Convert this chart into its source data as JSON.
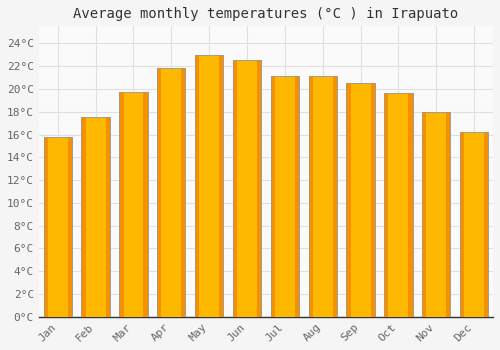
{
  "title": "Average monthly temperatures (°C ) in Irapuato",
  "months": [
    "Jan",
    "Feb",
    "Mar",
    "Apr",
    "May",
    "Jun",
    "Jul",
    "Aug",
    "Sep",
    "Oct",
    "Nov",
    "Dec"
  ],
  "temperatures": [
    15.8,
    17.5,
    19.7,
    21.8,
    23.0,
    22.5,
    21.1,
    21.1,
    20.5,
    19.6,
    18.0,
    16.2
  ],
  "bar_color_center": "#FFB800",
  "bar_color_edge": "#F59000",
  "bar_outline_color": "#999999",
  "background_color": "#F5F5F5",
  "plot_bg_color": "#FAFAFA",
  "grid_color": "#E0E0E0",
  "ytick_labels": [
    "0°C",
    "2°C",
    "4°C",
    "6°C",
    "8°C",
    "10°C",
    "12°C",
    "14°C",
    "16°C",
    "18°C",
    "20°C",
    "22°C",
    "24°C"
  ],
  "ytick_values": [
    0,
    2,
    4,
    6,
    8,
    10,
    12,
    14,
    16,
    18,
    20,
    22,
    24
  ],
  "ylim": [
    0,
    25.5
  ],
  "title_fontsize": 10,
  "tick_fontsize": 8,
  "title_color": "#333333",
  "tick_color": "#666666",
  "axis_color": "#333333"
}
